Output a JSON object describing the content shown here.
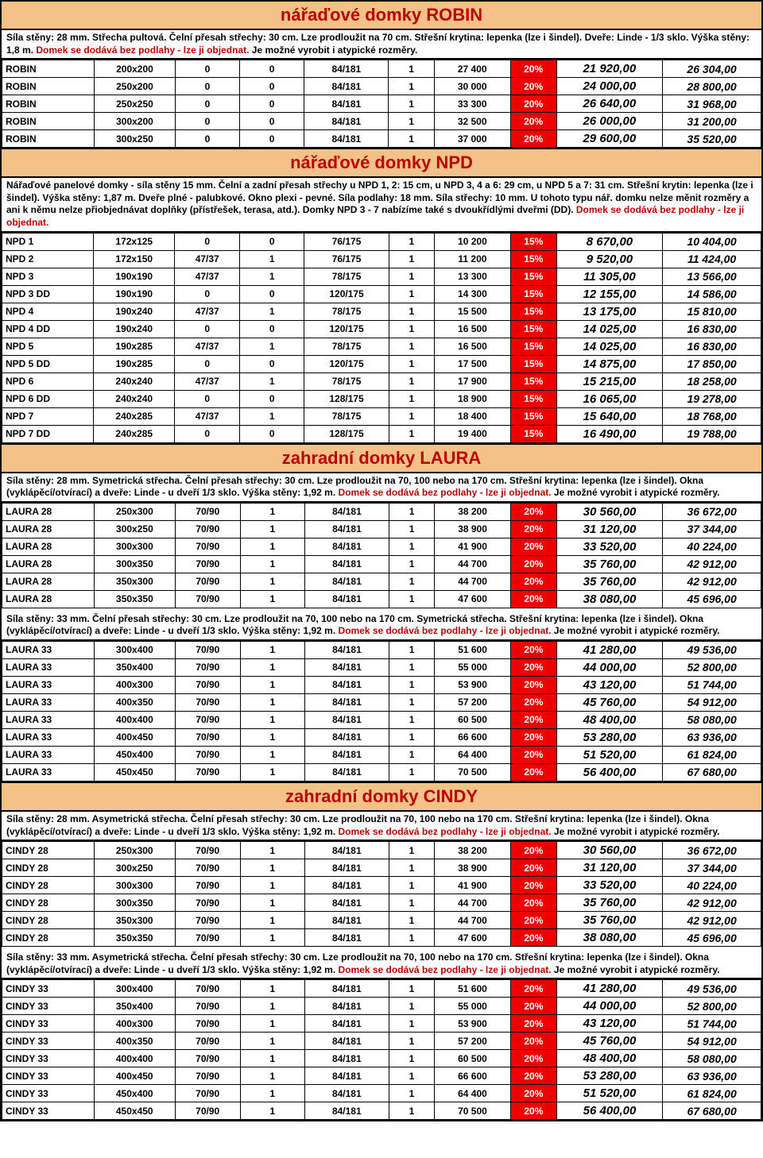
{
  "sections": [
    {
      "title": "nářaďové domky ROBIN",
      "desc": [
        {
          "t": "Síla stěny: 28 mm. Střecha pultová. Čelní přesah střechy: 30 cm. Lze prodloužit na 70 cm. Střešní krytina: lepenka (lze i šindel). Dveře: Linde - 1/3 sklo. Výška stěny: 1,8 m. "
        },
        {
          "t": "Domek se dodává bez podlahy - lze ji objednat.",
          "red": true
        },
        {
          "t": " Je možné vyrobit i atypické rozměry."
        }
      ],
      "rows": [
        [
          "ROBIN",
          "200x200",
          "0",
          "0",
          "84/181",
          "1",
          "27 400",
          "20%",
          "21 920,00",
          "26 304,00"
        ],
        [
          "ROBIN",
          "250x200",
          "0",
          "0",
          "84/181",
          "1",
          "30 000",
          "20%",
          "24 000,00",
          "28 800,00"
        ],
        [
          "ROBIN",
          "250x250",
          "0",
          "0",
          "84/181",
          "1",
          "33 300",
          "20%",
          "26 640,00",
          "31 968,00"
        ],
        [
          "ROBIN",
          "300x200",
          "0",
          "0",
          "84/181",
          "1",
          "32 500",
          "20%",
          "26 000,00",
          "31 200,00"
        ],
        [
          "ROBIN",
          "300x250",
          "0",
          "0",
          "84/181",
          "1",
          "37 000",
          "20%",
          "29 600,00",
          "35 520,00"
        ]
      ]
    },
    {
      "title": "nářaďové domky NPD",
      "desc": [
        {
          "t": "Nářaďové panelové domky - síla stěny 15 mm. Čelní a zadní přesah střechy u NPD 1, 2: 15 cm, u NPD 3, 4 a 6: 29 cm, u NPD 5 a 7: 31 cm. Střešní krytin: lepenka (lze i šindel). Výška stěny: 1,87 m. Dveře plné - palubkové. Okno plexi - pevné. Síla podlahy: 18 mm. Síla střechy: 10 mm. U tohoto typu nář. domku nelze měnit rozměry a ani k němu nelze přiobjednávat doplňky (přístřešek, terasa, atd.). Domky NPD 3 - 7 nabízíme také s dvoukřídlými dveřmi (DD). "
        },
        {
          "t": "Domek se dodává bez podlahy - lze ji objednat.",
          "red": true
        }
      ],
      "rows": [
        [
          "NPD 1",
          "172x125",
          "0",
          "0",
          "76/175",
          "1",
          "10 200",
          "15%",
          "8 670,00",
          "10 404,00"
        ],
        [
          "NPD 2",
          "172x150",
          "47/37",
          "1",
          "76/175",
          "1",
          "11 200",
          "15%",
          "9 520,00",
          "11 424,00"
        ],
        [
          "NPD 3",
          "190x190",
          "47/37",
          "1",
          "78/175",
          "1",
          "13 300",
          "15%",
          "11 305,00",
          "13 566,00"
        ],
        [
          "NPD 3 DD",
          "190x190",
          "0",
          "0",
          "120/175",
          "1",
          "14 300",
          "15%",
          "12 155,00",
          "14 586,00"
        ],
        [
          "NPD 4",
          "190x240",
          "47/37",
          "1",
          "78/175",
          "1",
          "15 500",
          "15%",
          "13 175,00",
          "15 810,00"
        ],
        [
          "NPD 4 DD",
          "190x240",
          "0",
          "0",
          "120/175",
          "1",
          "16 500",
          "15%",
          "14 025,00",
          "16 830,00"
        ],
        [
          "NPD 5",
          "190x285",
          "47/37",
          "1",
          "78/175",
          "1",
          "16 500",
          "15%",
          "14 025,00",
          "16 830,00"
        ],
        [
          "NPD 5 DD",
          "190x285",
          "0",
          "0",
          "120/175",
          "1",
          "17 500",
          "15%",
          "14 875,00",
          "17 850,00"
        ],
        [
          "NPD 6",
          "240x240",
          "47/37",
          "1",
          "78/175",
          "1",
          "17 900",
          "15%",
          "15 215,00",
          "18 258,00"
        ],
        [
          "NPD 6 DD",
          "240x240",
          "0",
          "0",
          "128/175",
          "1",
          "18 900",
          "15%",
          "16 065,00",
          "19 278,00"
        ],
        [
          "NPD 7",
          "240x285",
          "47/37",
          "1",
          "78/175",
          "1",
          "18 400",
          "15%",
          "15 640,00",
          "18 768,00"
        ],
        [
          "NPD 7 DD",
          "240x285",
          "0",
          "0",
          "128/175",
          "1",
          "19 400",
          "15%",
          "16 490,00",
          "19 788,00"
        ]
      ]
    },
    {
      "title": "zahradní domky LAURA",
      "desc": [
        {
          "t": "Síla stěny: 28 mm. Symetrická střecha. Čelní přesah střechy: 30 cm. Lze prodloužit na 70, 100 nebo na 170 cm. Střešní krytina: lepenka (lze i šindel). Okna (vyklápěcí/otvírací) a dveře: Linde - u dveří 1/3 sklo. Výška stěny: 1,92 m. "
        },
        {
          "t": "Domek se dodává bez podlahy - lze ji objednat.",
          "red": true
        },
        {
          "t": " Je možné vyrobit i atypické rozměry."
        }
      ],
      "rows": [
        [
          "LAURA  28",
          "250x300",
          "70/90",
          "1",
          "84/181",
          "1",
          "38 200",
          "20%",
          "30 560,00",
          "36 672,00"
        ],
        [
          "LAURA  28",
          "300x250",
          "70/90",
          "1",
          "84/181",
          "1",
          "38 900",
          "20%",
          "31 120,00",
          "37 344,00"
        ],
        [
          "LAURA  28",
          "300x300",
          "70/90",
          "1",
          "84/181",
          "1",
          "41 900",
          "20%",
          "33 520,00",
          "40 224,00"
        ],
        [
          "LAURA  28",
          "300x350",
          "70/90",
          "1",
          "84/181",
          "1",
          "44 700",
          "20%",
          "35 760,00",
          "42 912,00"
        ],
        [
          "LAURA  28",
          "350x300",
          "70/90",
          "1",
          "84/181",
          "1",
          "44 700",
          "20%",
          "35 760,00",
          "42 912,00"
        ],
        [
          "LAURA  28",
          "350x350",
          "70/90",
          "1",
          "84/181",
          "1",
          "47 600",
          "20%",
          "38 080,00",
          "45 696,00"
        ]
      ],
      "desc2": [
        {
          "t": "Síla stěny: 33 mm. Čelní přesah střechy: 30 cm. Lze prodloužit na 70, 100 nebo na 170 cm. Symetrická střecha. Střešní krytina: lepenka (lze i šindel). Okna (vyklápěcí/otvírací) a dveře: Linde - u dveří 1/3 sklo. Výška stěny: 1,92 m. "
        },
        {
          "t": "Domek se dodává bez podlahy - lze ji objednat.",
          "red": true
        },
        {
          "t": " Je možné vyrobit i atypické rozměry."
        }
      ],
      "rows2": [
        [
          "LAURA  33",
          "300x400",
          "70/90",
          "1",
          "84/181",
          "1",
          "51 600",
          "20%",
          "41 280,00",
          "49 536,00"
        ],
        [
          "LAURA  33",
          "350x400",
          "70/90",
          "1",
          "84/181",
          "1",
          "55 000",
          "20%",
          "44 000,00",
          "52 800,00"
        ],
        [
          "LAURA  33",
          "400x300",
          "70/90",
          "1",
          "84/181",
          "1",
          "53 900",
          "20%",
          "43 120,00",
          "51 744,00"
        ],
        [
          "LAURA  33",
          "400x350",
          "70/90",
          "1",
          "84/181",
          "1",
          "57 200",
          "20%",
          "45 760,00",
          "54 912,00"
        ],
        [
          "LAURA  33",
          "400x400",
          "70/90",
          "1",
          "84/181",
          "1",
          "60 500",
          "20%",
          "48 400,00",
          "58 080,00"
        ],
        [
          "LAURA  33",
          "400x450",
          "70/90",
          "1",
          "84/181",
          "1",
          "66 600",
          "20%",
          "53 280,00",
          "63 936,00"
        ],
        [
          "LAURA  33",
          "450x400",
          "70/90",
          "1",
          "84/181",
          "1",
          "64 400",
          "20%",
          "51 520,00",
          "61 824,00"
        ],
        [
          "LAURA  33",
          "450x450",
          "70/90",
          "1",
          "84/181",
          "1",
          "70 500",
          "20%",
          "56 400,00",
          "67 680,00"
        ]
      ]
    },
    {
      "title": "zahradní domky CINDY",
      "desc": [
        {
          "t": "Síla stěny: 28 mm. Asymetrická střecha. Čelní přesah střechy: 30 cm. Lze prodloužit na 70, 100 nebo na 170 cm. Střešní krytina: lepenka (lze i šindel). Okna (vyklápěcí/otvírací) a dveře: Linde - u dveří 1/3 sklo. Výška stěny: 1,92 m. "
        },
        {
          "t": "Domek se dodává bez podlahy - lze ji objednat.",
          "red": true
        },
        {
          "t": " Je možné vyrobit i atypické rozměry."
        }
      ],
      "rows": [
        [
          "CINDY  28",
          "250x300",
          "70/90",
          "1",
          "84/181",
          "1",
          "38 200",
          "20%",
          "30 560,00",
          "36 672,00"
        ],
        [
          "CINDY  28",
          "300x250",
          "70/90",
          "1",
          "84/181",
          "1",
          "38 900",
          "20%",
          "31 120,00",
          "37 344,00"
        ],
        [
          "CINDY  28",
          "300x300",
          "70/90",
          "1",
          "84/181",
          "1",
          "41 900",
          "20%",
          "33 520,00",
          "40 224,00"
        ],
        [
          "CINDY  28",
          "300x350",
          "70/90",
          "1",
          "84/181",
          "1",
          "44 700",
          "20%",
          "35 760,00",
          "42 912,00"
        ],
        [
          "CINDY  28",
          "350x300",
          "70/90",
          "1",
          "84/181",
          "1",
          "44 700",
          "20%",
          "35 760,00",
          "42 912,00"
        ],
        [
          "CINDY  28",
          "350x350",
          "70/90",
          "1",
          "84/181",
          "1",
          "47 600",
          "20%",
          "38 080,00",
          "45 696,00"
        ]
      ],
      "desc2": [
        {
          "t": "Síla stěny: 33 mm. Asymetrická střecha. Čelní přesah střechy: 30 cm. Lze prodloužit na 70, 100 nebo na 170 cm. Střešní krytina: lepenka (lze i šindel). Okna (vyklápěcí/otvírací) a dveře: Linde - u dveří 1/3 sklo. Výška stěny: 1,92 m. "
        },
        {
          "t": "Domek se dodává bez podlahy - lze ji objednat.",
          "red": true
        },
        {
          "t": " Je možné vyrobit i atypické rozměry."
        }
      ],
      "rows2": [
        [
          "CINDY  33",
          "300x400",
          "70/90",
          "1",
          "84/181",
          "1",
          "51 600",
          "20%",
          "41 280,00",
          "49 536,00"
        ],
        [
          "CINDY  33",
          "350x400",
          "70/90",
          "1",
          "84/181",
          "1",
          "55 000",
          "20%",
          "44 000,00",
          "52 800,00"
        ],
        [
          "CINDY  33",
          "400x300",
          "70/90",
          "1",
          "84/181",
          "1",
          "53 900",
          "20%",
          "43 120,00",
          "51 744,00"
        ],
        [
          "CINDY  33",
          "400x350",
          "70/90",
          "1",
          "84/181",
          "1",
          "57 200",
          "20%",
          "45 760,00",
          "54 912,00"
        ],
        [
          "CINDY  33",
          "400x400",
          "70/90",
          "1",
          "84/181",
          "1",
          "60 500",
          "20%",
          "48 400,00",
          "58 080,00"
        ],
        [
          "CINDY  33",
          "400x450",
          "70/90",
          "1",
          "84/181",
          "1",
          "66 600",
          "20%",
          "53 280,00",
          "63 936,00"
        ],
        [
          "CINDY  33",
          "450x400",
          "70/90",
          "1",
          "84/181",
          "1",
          "64 400",
          "20%",
          "51 520,00",
          "61 824,00"
        ],
        [
          "CINDY  33",
          "450x450",
          "70/90",
          "1",
          "84/181",
          "1",
          "70 500",
          "20%",
          "56 400,00",
          "67 680,00"
        ]
      ]
    }
  ],
  "colors": {
    "header_bg": "#f4c289",
    "pct_bg": "#e00",
    "title_color": "#b00"
  }
}
